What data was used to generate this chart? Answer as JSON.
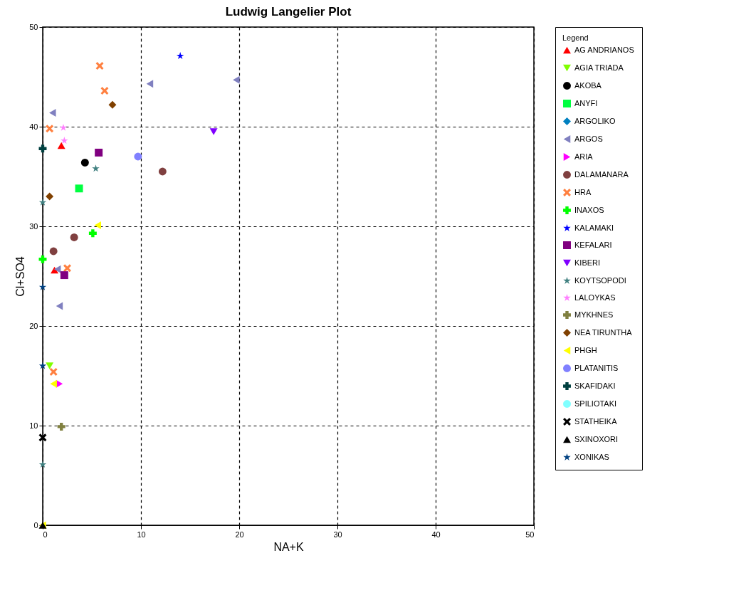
{
  "chart_data": {
    "type": "scatter",
    "title": "Ludwig Langelier Plot",
    "xlabel": "NA+K",
    "ylabel": "Cl+SO4",
    "legend_title": "Legend",
    "legend": "right",
    "grid": true,
    "line_style": "dashed",
    "xlim": [
      0,
      50
    ],
    "ylim": [
      0,
      50
    ],
    "xticks": [
      0,
      10,
      20,
      30,
      40,
      50
    ],
    "yticks": [
      0,
      10,
      20,
      30,
      40,
      50
    ],
    "series": [
      {
        "name": "AG ANDRIANOS",
        "color": "#ff0000",
        "marker": "triangle",
        "x": [
          1.2,
          1.9
        ],
        "values": [
          25.6,
          38.1
        ]
      },
      {
        "name": "AGIA TRIADA",
        "color": "#80ff00",
        "marker": "triangle-down",
        "x": [
          0.7
        ],
        "values": [
          16.0
        ]
      },
      {
        "name": "AKOBA",
        "color": "#000000",
        "marker": "circle",
        "x": [
          4.3
        ],
        "values": [
          36.4
        ]
      },
      {
        "name": "ANYFI",
        "color": "#00ff40",
        "marker": "square",
        "x": [
          3.7
        ],
        "values": [
          33.8
        ]
      },
      {
        "name": "ARGOLIKO",
        "color": "#0080c0",
        "marker": "diamond",
        "x": [
          null
        ],
        "values": [
          null
        ]
      },
      {
        "name": "ARGOS",
        "color": "#8080c0",
        "marker": "triangle-left",
        "x": [
          1.0,
          10.9,
          19.7,
          1.5,
          1.7
        ],
        "values": [
          41.4,
          44.3,
          44.7,
          25.7,
          22.0
        ]
      },
      {
        "name": "ARIA",
        "color": "#ff00ff",
        "marker": "triangle-right",
        "x": [
          1.7
        ],
        "values": [
          14.2
        ]
      },
      {
        "name": "DALAMANARA",
        "color": "#804040",
        "marker": "circle",
        "x": [
          12.2,
          3.2,
          1.1
        ],
        "values": [
          35.5,
          28.9,
          27.5
        ]
      },
      {
        "name": "HRA",
        "color": "#ff8040",
        "marker": "x",
        "x": [
          5.8,
          6.3,
          0.7,
          2.5,
          1.1
        ],
        "values": [
          46.1,
          43.6,
          39.8,
          25.8,
          15.4
        ]
      },
      {
        "name": "INAXOS",
        "color": "#00ff00",
        "marker": "cross",
        "x": [
          5.1,
          0
        ],
        "values": [
          29.3,
          26.7
        ]
      },
      {
        "name": "KALAMAKI",
        "color": "#0000ff",
        "marker": "star",
        "x": [
          14.0
        ],
        "values": [
          47.1
        ]
      },
      {
        "name": "KEFALARI",
        "color": "#800080",
        "marker": "square",
        "x": [
          5.7,
          2.2
        ],
        "values": [
          37.4,
          25.1
        ]
      },
      {
        "name": "KIBERI",
        "color": "#8000ff",
        "marker": "triangle-down",
        "x": [
          17.4
        ],
        "values": [
          39.5
        ]
      },
      {
        "name": "KOYTSOPODI",
        "color": "#408080",
        "marker": "star",
        "x": [
          5.4,
          0,
          0
        ],
        "values": [
          35.8,
          32.4,
          6.1
        ]
      },
      {
        "name": "LALOYKAS",
        "color": "#ff80ff",
        "marker": "star",
        "x": [
          2.1,
          2.2
        ],
        "values": [
          39.9,
          38.6
        ]
      },
      {
        "name": "MYKHNES",
        "color": "#808040",
        "marker": "cross",
        "x": [
          1.9
        ],
        "values": [
          9.9
        ]
      },
      {
        "name": "NEA TIRUNTHA",
        "color": "#804000",
        "marker": "diamond",
        "x": [
          7.1,
          0.7
        ],
        "values": [
          42.2,
          33.0
        ]
      },
      {
        "name": "PHGH",
        "color": "#ffff00",
        "marker": "triangle-left",
        "x": [
          5.6,
          1.1,
          0
        ],
        "values": [
          30.1,
          14.2,
          0
        ]
      },
      {
        "name": "PLATANITIS",
        "color": "#8080ff",
        "marker": "circle",
        "x": [
          9.7
        ],
        "values": [
          37.0
        ]
      },
      {
        "name": "SKAFIDAKI",
        "color": "#004040",
        "marker": "cross",
        "x": [
          0
        ],
        "values": [
          37.8
        ]
      },
      {
        "name": "SPILIOTAKI",
        "color": "#80ffff",
        "marker": "circle",
        "x": [
          null
        ],
        "values": [
          null
        ]
      },
      {
        "name": "STATHEIKA",
        "color": "#000000",
        "marker": "x",
        "x": [
          0
        ],
        "values": [
          8.8
        ]
      },
      {
        "name": "SXINOXORI",
        "color": "#000000",
        "marker": "triangle",
        "x": [
          0
        ],
        "values": [
          0
        ]
      },
      {
        "name": "XONIKAS",
        "color": "#004080",
        "marker": "star",
        "x": [
          0,
          0
        ],
        "values": [
          23.9,
          16.0
        ]
      }
    ]
  }
}
